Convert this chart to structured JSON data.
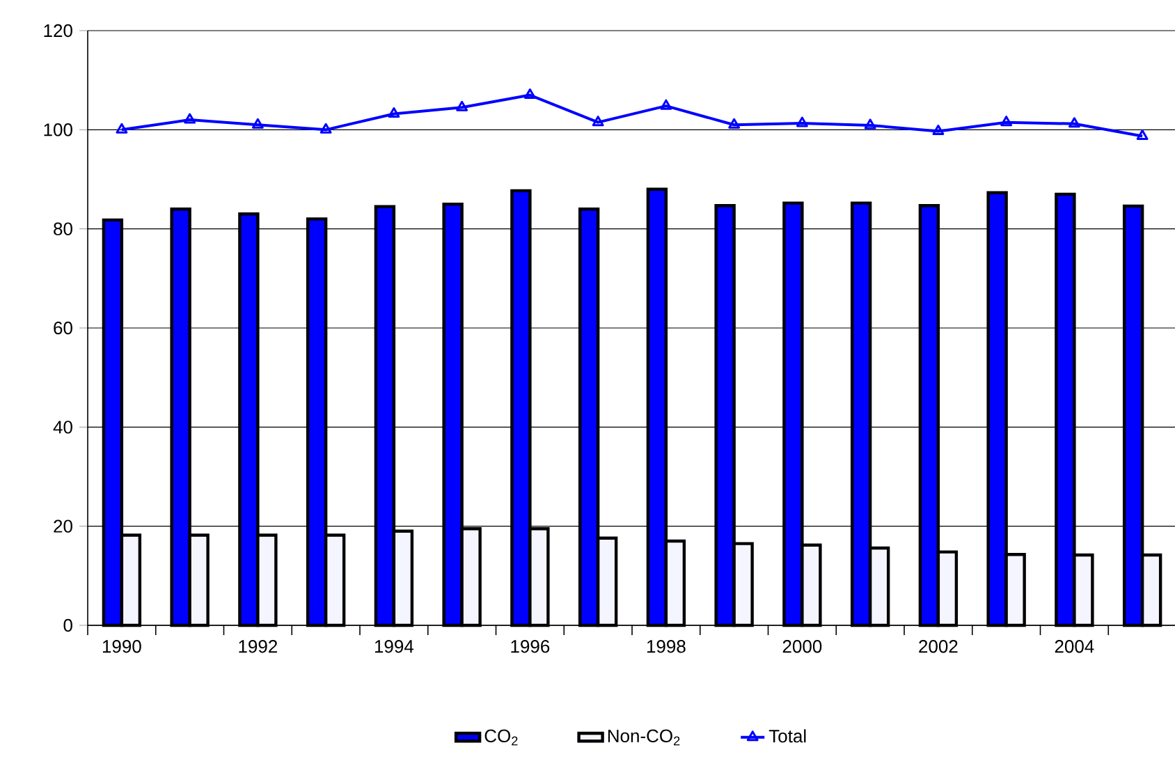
{
  "chart_data": {
    "type": "bar",
    "categories": [
      "1990",
      null,
      "1992",
      null,
      "1994",
      null,
      "1996",
      null,
      "1998",
      null,
      "2000",
      null,
      "2002",
      null,
      "2004",
      null
    ],
    "series": [
      {
        "name": "CO$_{2}$",
        "color": "#0000ff",
        "values": [
          81.8,
          84,
          83,
          82,
          84.5,
          85,
          87.7,
          84,
          88,
          84.7,
          85.2,
          85.2,
          84.7,
          87.3,
          87,
          84.6
        ]
      },
      {
        "name": "Non-CO$_{2}$",
        "color": "#f5f5ff",
        "values": [
          18.2,
          18.2,
          18.2,
          18.2,
          19,
          19.5,
          19.5,
          17.6,
          17,
          16.5,
          16.2,
          15.6,
          14.8,
          14.3,
          14.2,
          14.2
        ]
      },
      {
        "name": "Total",
        "type": "line",
        "color": "#0000ff",
        "values": [
          100,
          102,
          101,
          100,
          103.2,
          104.5,
          107,
          101.5,
          104.8,
          101,
          101.3,
          100.9,
          99.7,
          101.5,
          101.2,
          98.7
        ]
      }
    ],
    "ylim": [
      0,
      120
    ],
    "yticks": [
      0,
      20,
      40,
      60,
      80,
      100,
      120
    ],
    "grid": "y",
    "legend": "bottom",
    "marker": "triangle"
  }
}
